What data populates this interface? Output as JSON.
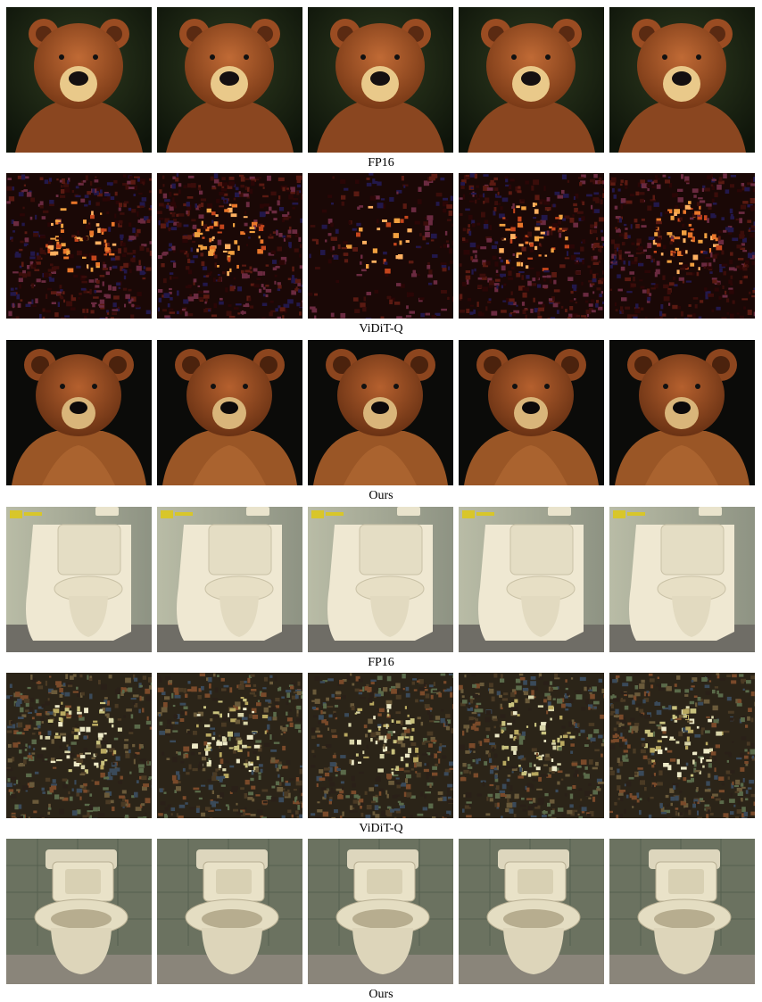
{
  "figure": {
    "rows": [
      {
        "subject": "bear",
        "method": "FP16",
        "caption": "FP16",
        "frames": 5
      },
      {
        "subject": "bear",
        "method": "ViDiT-Q",
        "caption": "ViDiT-Q",
        "frames": 5
      },
      {
        "subject": "bear",
        "method": "Ours",
        "caption": "Ours",
        "frames": 5
      },
      {
        "subject": "toilet",
        "method": "FP16",
        "caption": "FP16",
        "frames": 5
      },
      {
        "subject": "toilet",
        "method": "ViDiT-Q",
        "caption": "ViDiT-Q",
        "frames": 5
      },
      {
        "subject": "toilet",
        "method": "Ours",
        "caption": "Ours",
        "frames": 5
      }
    ]
  }
}
